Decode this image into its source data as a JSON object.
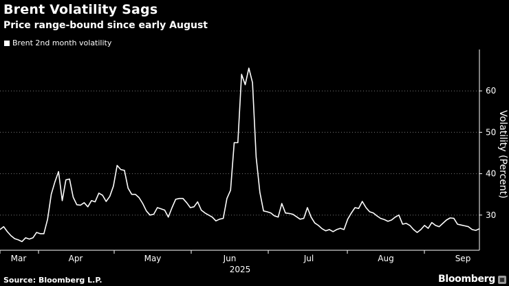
{
  "title": "Brent Volatility Sags",
  "subtitle": "Price range-bound since early August",
  "source": "Source: Bloomberg L.P.",
  "brand": "Bloomberg",
  "chart_data": {
    "type": "line",
    "series": [
      {
        "name": "Brent 2nd month volatility",
        "color": "#ffffff",
        "values": [
          26.5,
          27.2,
          26.0,
          25.0,
          24.3,
          24.0,
          23.6,
          24.5,
          24.2,
          24.5,
          25.8,
          25.5,
          25.5,
          29.0,
          35.0,
          38.0,
          40.5,
          33.5,
          38.5,
          38.7,
          34.3,
          32.5,
          32.4,
          33.0,
          32.0,
          33.5,
          33.2,
          35.3,
          34.8,
          33.3,
          34.5,
          37.0,
          42.0,
          41.0,
          40.8,
          36.5,
          35.0,
          35.0,
          34.2,
          32.8,
          31.0,
          30.0,
          30.2,
          31.8,
          31.5,
          31.2,
          29.5,
          31.8,
          33.8,
          34.0,
          34.0,
          33.0,
          31.8,
          32.0,
          33.2,
          31.2,
          30.5,
          30.0,
          29.5,
          28.6,
          29.0,
          29.2,
          34.0,
          36.0,
          47.5,
          47.5,
          64.0,
          61.5,
          65.5,
          62.0,
          44.0,
          35.5,
          31.0,
          30.8,
          30.5,
          29.8,
          29.5,
          32.8,
          30.5,
          30.4,
          30.2,
          29.6,
          29.0,
          29.2,
          31.8,
          29.5,
          28.1,
          27.5,
          26.7,
          26.2,
          26.5,
          26.0,
          26.5,
          26.8,
          26.5,
          29.0,
          30.5,
          31.8,
          31.6,
          33.3,
          31.8,
          30.8,
          30.5,
          29.8,
          29.2,
          28.9,
          28.5,
          28.8,
          29.5,
          30.0,
          27.8,
          28.0,
          27.5,
          26.5,
          25.8,
          26.5,
          27.5,
          26.8,
          28.2,
          27.5,
          27.2,
          28.0,
          28.8,
          29.3,
          29.2,
          27.8,
          27.6,
          27.4,
          27.2,
          26.5,
          26.3,
          26.7
        ]
      }
    ],
    "x_month_labels": [
      "Mar",
      "Apr",
      "May",
      "Jun",
      "Jul",
      "Aug",
      "Sep"
    ],
    "x_year_label": "2025",
    "ylabel": "Volatility (Percent)",
    "yticks": [
      30,
      40,
      50,
      60
    ],
    "ylim": [
      21.5,
      69.5
    ],
    "grid": true,
    "legend_position": "top-left"
  }
}
